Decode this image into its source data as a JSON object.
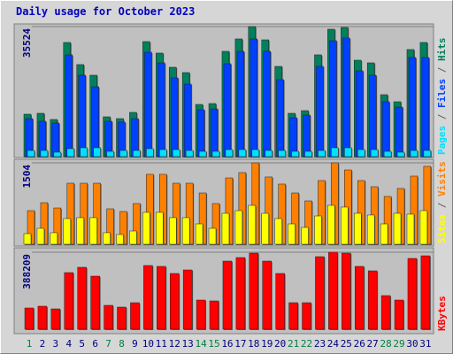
{
  "chart_data": [
    {
      "type": "bar",
      "title": "Daily usage for October 2023",
      "series": [
        {
          "name": "Hits",
          "color": "#00805c",
          "values": [
            11600,
            11840,
            10150,
            31180,
            25140,
            22240,
            10880,
            10390,
            12090,
            31420,
            28280,
            24410,
            22960,
            14260,
            14500,
            28760,
            32150,
            35524,
            31900,
            24650,
            11840,
            12570,
            27800,
            34800,
            35290,
            26340,
            25620,
            16920,
            14990,
            29250,
            31180
          ]
        },
        {
          "name": "Files",
          "color": "#0040ff",
          "values": [
            10390,
            9670,
            9180,
            27800,
            22240,
            19090,
            9670,
            9430,
            10390,
            28520,
            25620,
            21510,
            19820,
            12810,
            13050,
            25380,
            28760,
            32150,
            28760,
            21030,
            10630,
            11360,
            24650,
            31660,
            32390,
            23450,
            22240,
            14990,
            13540,
            27070,
            27070
          ]
        },
        {
          "name": "Pages",
          "color": "#00e0ff",
          "values": [
            1690,
            1690,
            1210,
            2180,
            2420,
            2420,
            1450,
            1690,
            1690,
            2180,
            1930,
            1930,
            1690,
            1450,
            1450,
            1930,
            1930,
            1930,
            1690,
            1690,
            1450,
            1450,
            1690,
            2420,
            2420,
            1930,
            1930,
            1450,
            1210,
            1690,
            1690
          ]
        }
      ],
      "legend_separator": " / ",
      "ylim": [
        0,
        35524
      ],
      "yticks": [
        35524
      ]
    },
    {
      "type": "bar",
      "series": [
        {
          "name": "Visits",
          "color": "#ff8000",
          "values": [
            621,
            768,
            670,
            1128,
            1128,
            1128,
            654,
            605,
            752,
            1292,
            1292,
            1128,
            1128,
            948,
            752,
            1226,
            1324,
            1504,
            1243,
            1112,
            948,
            801,
            1177,
            1504,
            1373,
            1177,
            1063,
            883,
            1030,
            1259,
            1439
          ]
        },
        {
          "name": "Sites",
          "color": "#ffff00",
          "values": [
            196,
            294,
            213,
            474,
            491,
            491,
            213,
            180,
            245,
            589,
            589,
            491,
            491,
            376,
            294,
            572,
            621,
            719,
            572,
            474,
            376,
            311,
            523,
            719,
            687,
            572,
            540,
            376,
            572,
            556,
            621
          ]
        }
      ],
      "legend_separator": " / ",
      "ylim": [
        0,
        1504
      ],
      "yticks": [
        1504
      ]
    },
    {
      "type": "bar",
      "categories": [
        "1",
        "2",
        "3",
        "4",
        "5",
        "6",
        "7",
        "8",
        "9",
        "10",
        "11",
        "12",
        "13",
        "14",
        "15",
        "16",
        "17",
        "18",
        "19",
        "20",
        "21",
        "22",
        "23",
        "24",
        "25",
        "26",
        "27",
        "28",
        "29",
        "30",
        "31"
      ],
      "weekend": [
        true,
        false,
        false,
        false,
        false,
        false,
        true,
        true,
        false,
        false,
        false,
        false,
        false,
        true,
        true,
        false,
        false,
        false,
        false,
        false,
        true,
        true,
        false,
        false,
        false,
        false,
        false,
        true,
        true,
        false,
        false
      ],
      "weekend_color": "#008040",
      "weekday_color": "#000080",
      "series": [
        {
          "name": "KBytes",
          "color": "#ff0000",
          "values": [
            107090,
            116010,
            102630,
            285570,
            312340,
            267720,
            120470,
            111550,
            133860,
            321260,
            316800,
            281110,
            298950,
            147250,
            142780,
            343570,
            361420,
            383730,
            343570,
            281110,
            133860,
            133860,
            365880,
            388209,
            383730,
            316800,
            294490,
            169560,
            147250,
            356960,
            370340
          ]
        }
      ],
      "ylim": [
        0,
        388209
      ],
      "yticks": [
        388209
      ]
    }
  ]
}
